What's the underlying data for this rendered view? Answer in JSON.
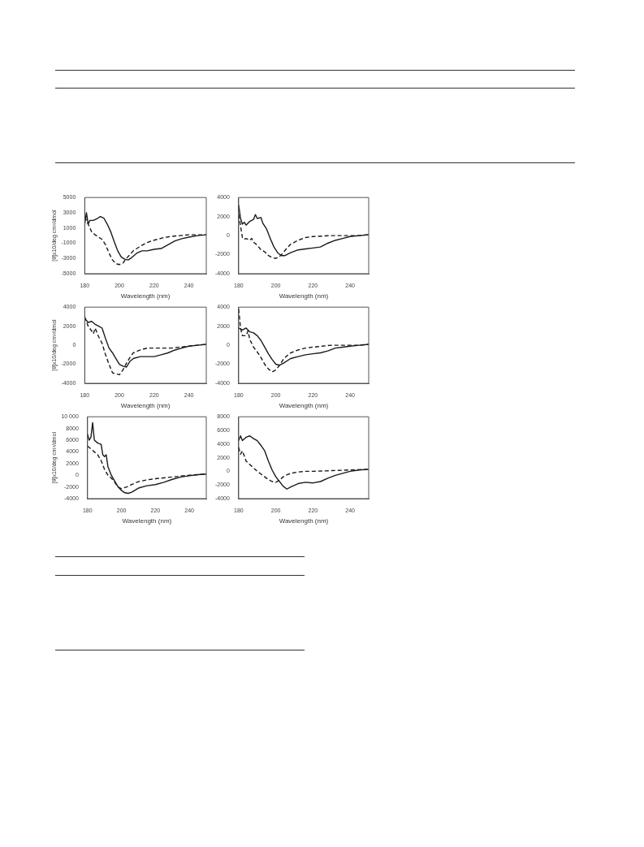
{
  "chart_data": [
    {
      "type": "line",
      "xlabel": "Wavelength (nm)",
      "ylabel": "[θ]x10/deg cm²/dmol",
      "xlim": [
        180,
        250
      ],
      "xticks": [
        180,
        200,
        220,
        240
      ],
      "ylim": [
        -5000,
        5000
      ],
      "yticks": [
        -5000,
        -3000,
        -1000,
        1000,
        3000,
        5000
      ],
      "grid": false,
      "legend": false,
      "series": [
        {
          "color": "#1a1a1a",
          "line_style": "solid",
          "x": [
            180,
            181,
            182,
            183,
            185,
            187,
            189,
            191,
            193,
            195,
            197,
            199,
            201,
            203,
            205,
            207,
            210,
            213,
            216,
            220,
            224,
            228,
            232,
            236,
            240,
            245,
            250
          ],
          "values": [
            1500,
            3000,
            1500,
            2000,
            2000,
            2200,
            2500,
            2300,
            1500,
            500,
            -800,
            -2000,
            -2800,
            -3100,
            -3200,
            -2900,
            -2300,
            -2000,
            -2000,
            -1800,
            -1700,
            -1200,
            -700,
            -400,
            -200,
            0,
            100
          ]
        },
        {
          "color": "#1a1a1a",
          "line_style": "dashed",
          "x": [
            180,
            182,
            184,
            186,
            188,
            190,
            192,
            194,
            196,
            198,
            200,
            202,
            204,
            206,
            208,
            212,
            216,
            220,
            225,
            230,
            235,
            240,
            245,
            250
          ],
          "values": [
            2500,
            1500,
            500,
            100,
            -200,
            -500,
            -1200,
            -2300,
            -3200,
            -3700,
            -3800,
            -3600,
            -3000,
            -2500,
            -2000,
            -1400,
            -900,
            -600,
            -300,
            -100,
            0,
            100,
            100,
            100
          ]
        }
      ]
    },
    {
      "type": "line",
      "xlabel": "Wavelength (nm)",
      "xlim": [
        180,
        250
      ],
      "xticks": [
        180,
        200,
        220,
        240
      ],
      "ylim": [
        -4000,
        4000
      ],
      "yticks": [
        -4000,
        -2000,
        0,
        2000,
        4000
      ],
      "grid": false,
      "legend": false,
      "series": [
        {
          "color": "#1a1a1a",
          "line_style": "solid",
          "x": [
            180,
            181,
            182,
            183,
            184,
            186,
            188,
            189,
            190,
            192,
            193,
            195,
            197,
            199,
            201,
            203,
            205,
            208,
            212,
            216,
            220,
            224,
            228,
            232,
            236,
            240,
            245,
            250
          ],
          "values": [
            3200,
            1800,
            1200,
            1400,
            1100,
            1500,
            1700,
            2200,
            1800,
            1900,
            1300,
            700,
            -300,
            -1200,
            -1800,
            -2100,
            -2100,
            -1800,
            -1500,
            -1400,
            -1300,
            -1200,
            -800,
            -500,
            -300,
            -100,
            0,
            100
          ]
        },
        {
          "color": "#1a1a1a",
          "line_style": "dashed",
          "x": [
            180,
            181,
            182,
            183,
            184,
            186,
            187,
            188,
            190,
            192,
            194,
            196,
            198,
            200,
            202,
            204,
            206,
            208,
            212,
            216,
            220,
            230,
            240,
            245,
            250
          ],
          "values": [
            2200,
            1000,
            -200,
            -400,
            -300,
            -500,
            -300,
            -700,
            -1000,
            -1500,
            -1700,
            -2100,
            -2300,
            -2400,
            -2200,
            -1800,
            -1300,
            -900,
            -500,
            -200,
            -100,
            0,
            0,
            0,
            100
          ]
        }
      ]
    },
    {
      "type": "line",
      "xlabel": "Wavelength (nm)",
      "ylabel": "[θ]x10/deg cm²/dmol",
      "xlim": [
        180,
        250
      ],
      "xticks": [
        180,
        200,
        220,
        240
      ],
      "ylim": [
        -4000,
        4000
      ],
      "yticks": [
        -4000,
        -2000,
        0,
        2000,
        4000
      ],
      "grid": false,
      "legend": false,
      "series": [
        {
          "color": "#1a1a1a",
          "line_style": "solid",
          "x": [
            180,
            182,
            184,
            186,
            188,
            190,
            192,
            194,
            196,
            198,
            200,
            202,
            204,
            206,
            208,
            212,
            216,
            220,
            224,
            228,
            232,
            236,
            240,
            245,
            250
          ],
          "values": [
            2800,
            2400,
            2500,
            2200,
            2000,
            1800,
            700,
            -300,
            -800,
            -1400,
            -2000,
            -2200,
            -2300,
            -1700,
            -1400,
            -1200,
            -1200,
            -1200,
            -1000,
            -800,
            -500,
            -300,
            -100,
            0,
            100
          ]
        },
        {
          "color": "#1a1a1a",
          "line_style": "dashed",
          "x": [
            180,
            182,
            184,
            185,
            186,
            188,
            190,
            192,
            194,
            196,
            198,
            200,
            202,
            204,
            206,
            208,
            212,
            216,
            220,
            225,
            230,
            235,
            240,
            245,
            250
          ],
          "values": [
            3000,
            2000,
            1500,
            1200,
            1800,
            900,
            200,
            -1000,
            -2000,
            -2900,
            -3000,
            -3100,
            -2600,
            -1900,
            -1300,
            -800,
            -500,
            -300,
            -300,
            -300,
            -300,
            -200,
            -100,
            0,
            100
          ]
        }
      ]
    },
    {
      "type": "line",
      "xlabel": "Wavelength (nm)",
      "xlim": [
        180,
        250
      ],
      "xticks": [
        180,
        200,
        220,
        240
      ],
      "ylim": [
        -4000,
        4000
      ],
      "yticks": [
        -4000,
        -2000,
        0,
        2000,
        4000
      ],
      "grid": false,
      "legend": false,
      "series": [
        {
          "color": "#1a1a1a",
          "line_style": "solid",
          "x": [
            180,
            182,
            184,
            186,
            188,
            190,
            192,
            194,
            196,
            198,
            200,
            202,
            204,
            208,
            212,
            216,
            220,
            224,
            228,
            232,
            236,
            240,
            245,
            250
          ],
          "values": [
            1800,
            1600,
            1800,
            1400,
            1300,
            1000,
            500,
            -200,
            -900,
            -1500,
            -2000,
            -2100,
            -1900,
            -1400,
            -1200,
            -1000,
            -900,
            -800,
            -600,
            -300,
            -200,
            -100,
            0,
            100
          ]
        },
        {
          "color": "#1a1a1a",
          "line_style": "dashed",
          "x": [
            180,
            181,
            182,
            184,
            185,
            186,
            188,
            190,
            192,
            194,
            196,
            198,
            200,
            202,
            204,
            206,
            208,
            212,
            216,
            220,
            225,
            230,
            240,
            245,
            250
          ],
          "values": [
            3800,
            1800,
            1000,
            1000,
            1500,
            600,
            -200,
            -700,
            -1300,
            -2000,
            -2500,
            -2800,
            -2600,
            -2100,
            -1500,
            -1100,
            -800,
            -500,
            -300,
            -200,
            -100,
            0,
            0,
            0,
            100
          ]
        }
      ]
    },
    {
      "type": "line",
      "xlabel": "Wavelength (nm)",
      "ylabel": "[θ]x10/deg cm²/dmol",
      "xlim": [
        180,
        250
      ],
      "xticks": [
        180,
        200,
        220,
        240
      ],
      "ylim": [
        -4000,
        10000
      ],
      "yticks": [
        -4000,
        -2000,
        0,
        2000,
        4000,
        6000,
        8000,
        {
          "value": 10000,
          "label": "10 000"
        }
      ],
      "grid": false,
      "legend": false,
      "series": [
        {
          "color": "#1a1a1a",
          "line_style": "solid",
          "x": [
            180,
            181,
            182,
            183,
            184,
            186,
            188,
            189,
            190,
            191,
            192,
            194,
            196,
            198,
            200,
            202,
            204,
            206,
            210,
            215,
            220,
            225,
            230,
            235,
            240,
            245,
            250
          ],
          "values": [
            7000,
            6000,
            6500,
            9000,
            6000,
            5500,
            5300,
            3500,
            3200,
            3500,
            1500,
            0,
            -1000,
            -2000,
            -2600,
            -3000,
            -3100,
            -2900,
            -2200,
            -1800,
            -1600,
            -1200,
            -700,
            -300,
            -100,
            100,
            200
          ]
        },
        {
          "color": "#1a1a1a",
          "line_style": "dashed",
          "x": [
            180,
            182,
            184,
            186,
            188,
            190,
            192,
            194,
            196,
            198,
            200,
            202,
            204,
            206,
            210,
            215,
            220,
            230,
            240,
            250
          ],
          "values": [
            5000,
            4500,
            4000,
            3500,
            2500,
            1000,
            0,
            -500,
            -1200,
            -2000,
            -2300,
            -2100,
            -1900,
            -1600,
            -1100,
            -800,
            -600,
            -300,
            0,
            200
          ]
        }
      ]
    },
    {
      "type": "line",
      "xlabel": "Wavelength (nm)",
      "xlim": [
        180,
        250
      ],
      "xticks": [
        180,
        200,
        220,
        240
      ],
      "ylim": [
        -4000,
        8000
      ],
      "yticks": [
        -4000,
        -2000,
        0,
        2000,
        4000,
        6000,
        8000
      ],
      "grid": false,
      "legend": false,
      "series": [
        {
          "color": "#1a1a1a",
          "line_style": "solid",
          "x": [
            180,
            181,
            182,
            184,
            186,
            188,
            190,
            192,
            194,
            196,
            198,
            200,
            202,
            204,
            206,
            208,
            212,
            216,
            220,
            224,
            228,
            232,
            236,
            240,
            245,
            250
          ],
          "values": [
            4500,
            5200,
            4500,
            5000,
            5200,
            4800,
            4500,
            3800,
            3000,
            1500,
            200,
            -800,
            -1500,
            -2200,
            -2600,
            -2300,
            -1800,
            -1600,
            -1700,
            -1500,
            -1000,
            -600,
            -300,
            0,
            200,
            300
          ]
        },
        {
          "color": "#1a1a1a",
          "line_style": "dashed",
          "x": [
            180,
            181,
            182,
            184,
            186,
            188,
            190,
            192,
            194,
            196,
            198,
            200,
            202,
            204,
            206,
            208,
            212,
            216,
            220,
            230,
            240,
            250
          ],
          "values": [
            3500,
            2500,
            3000,
            1500,
            1000,
            500,
            0,
            -400,
            -800,
            -1200,
            -1500,
            -1600,
            -1300,
            -800,
            -500,
            -300,
            -100,
            0,
            0,
            100,
            200,
            300
          ]
        }
      ]
    }
  ]
}
